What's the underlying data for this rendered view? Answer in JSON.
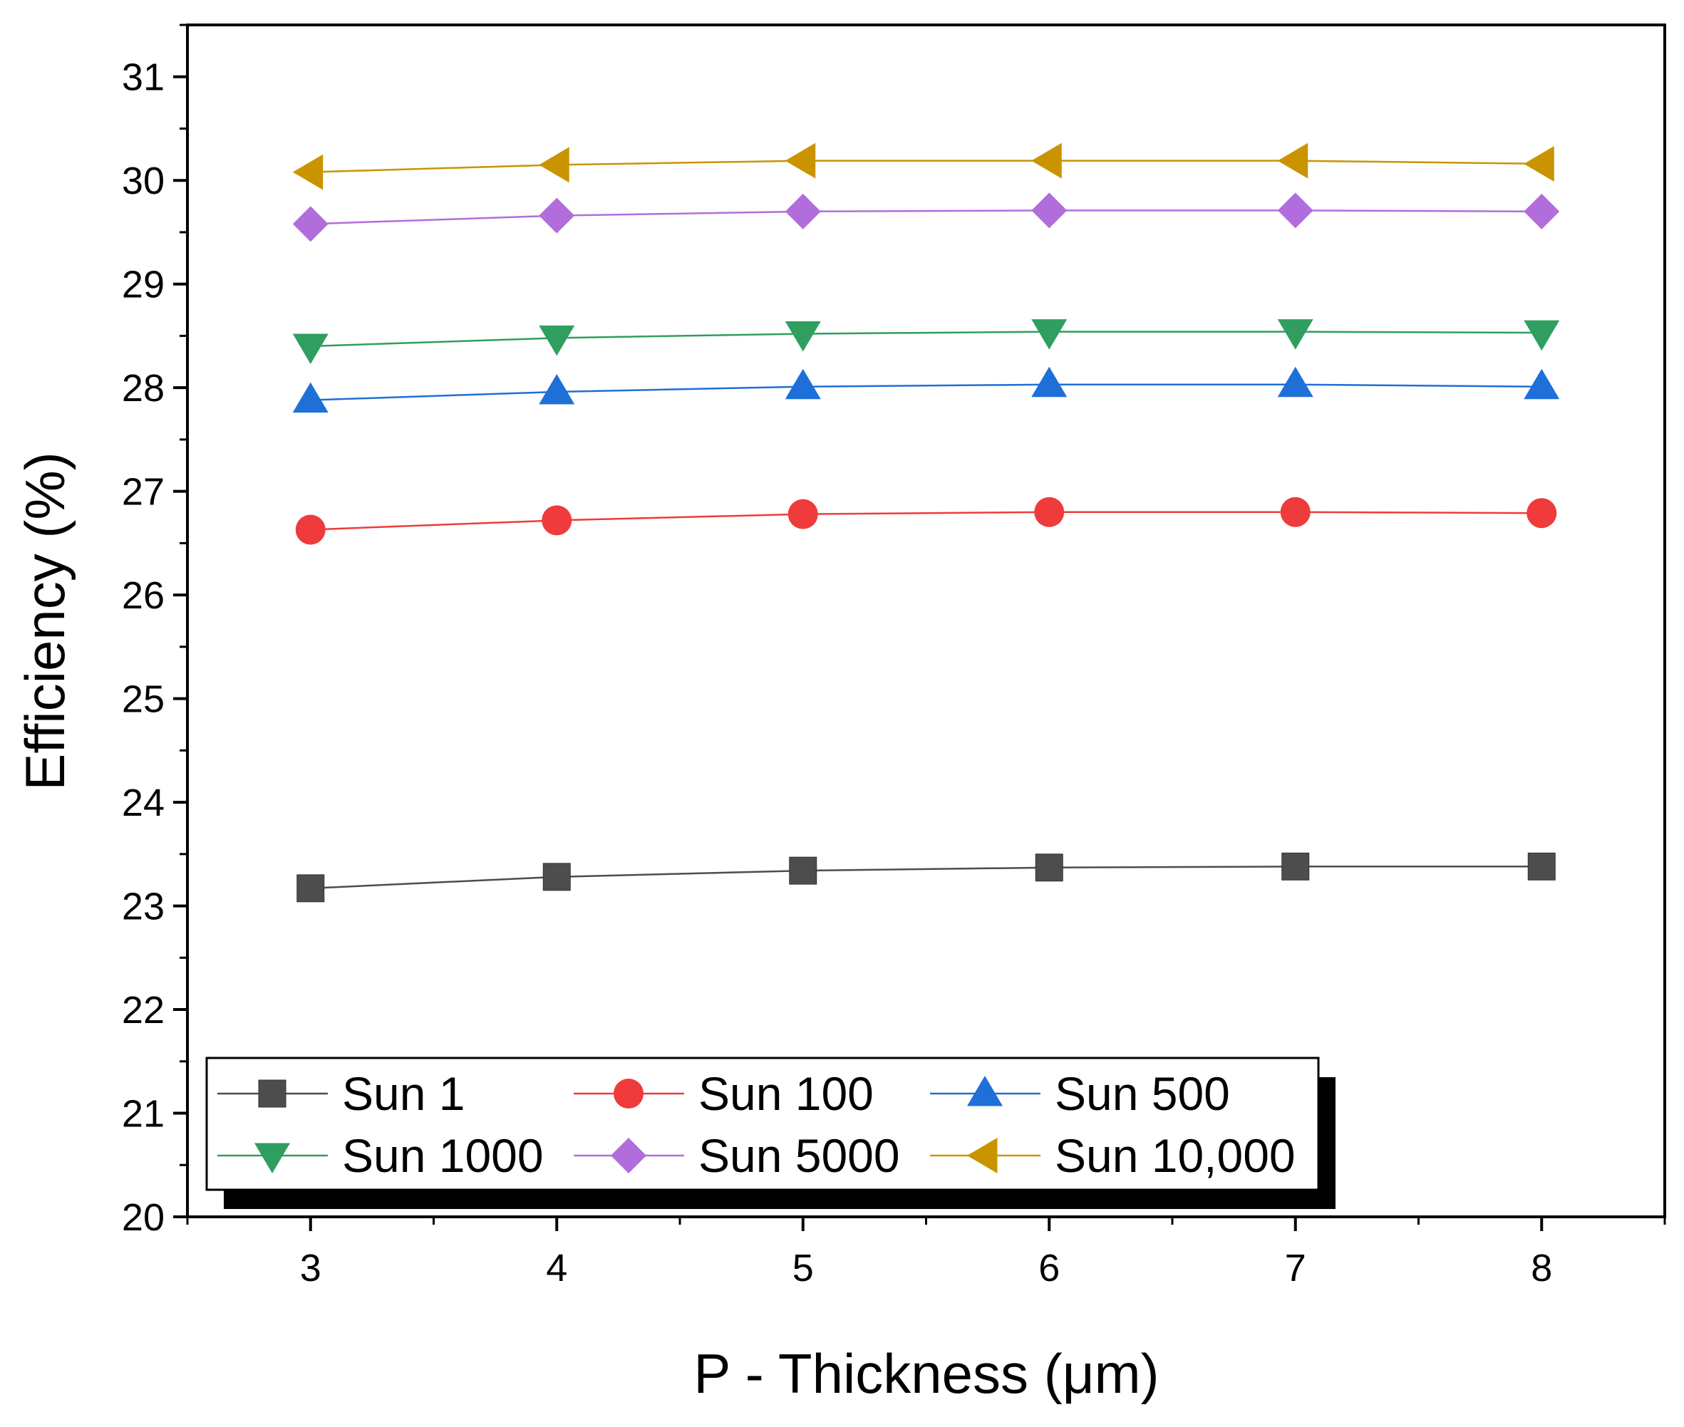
{
  "chart_data": {
    "type": "line",
    "xlabel": "P - Thickness (μm)",
    "ylabel": "Efficiency (%)",
    "x": [
      3,
      4,
      5,
      6,
      7,
      8
    ],
    "xlim": [
      2.5,
      8.5
    ],
    "ylim": [
      20,
      31.5
    ],
    "xticks": [
      "3",
      "4",
      "5",
      "6",
      "7",
      "8"
    ],
    "yticks": [
      "20",
      "21",
      "22",
      "23",
      "24",
      "25",
      "26",
      "27",
      "28",
      "29",
      "30",
      "31"
    ],
    "legend_position": "bottom-left",
    "grid": false,
    "series": [
      {
        "name": "Sun 1",
        "marker": "square",
        "color": "#4d4d4d",
        "values": [
          23.17,
          23.28,
          23.34,
          23.37,
          23.38,
          23.38
        ]
      },
      {
        "name": "Sun 100",
        "marker": "circle",
        "color": "#ef3b3b",
        "values": [
          26.63,
          26.72,
          26.78,
          26.8,
          26.8,
          26.79
        ]
      },
      {
        "name": "Sun 500",
        "marker": "triangle-up",
        "color": "#1f6fd8",
        "values": [
          27.88,
          27.96,
          28.01,
          28.03,
          28.03,
          28.01
        ]
      },
      {
        "name": "Sun 1000",
        "marker": "triangle-down",
        "color": "#2f9e5f",
        "values": [
          28.4,
          28.48,
          28.52,
          28.54,
          28.54,
          28.53
        ]
      },
      {
        "name": "Sun 5000",
        "marker": "diamond",
        "color": "#b26ddc",
        "values": [
          29.58,
          29.66,
          29.7,
          29.71,
          29.71,
          29.7
        ]
      },
      {
        "name": "Sun 10,000",
        "marker": "triangle-left",
        "color": "#c99400",
        "values": [
          30.08,
          30.15,
          30.19,
          30.19,
          30.19,
          30.16
        ]
      }
    ]
  }
}
